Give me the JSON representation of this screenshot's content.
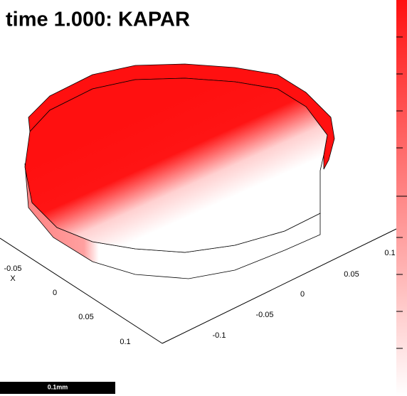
{
  "title": "time 1.000: KAPAR",
  "x_axis": {
    "label": "X",
    "ticks": [
      "-0.05",
      "0",
      "0.05",
      "0.1"
    ]
  },
  "y_axis": {
    "ticks": [
      "-0.1",
      "-0.05",
      "0",
      "0.05",
      "0.1"
    ]
  },
  "scale_bar": "0.1mm"
}
